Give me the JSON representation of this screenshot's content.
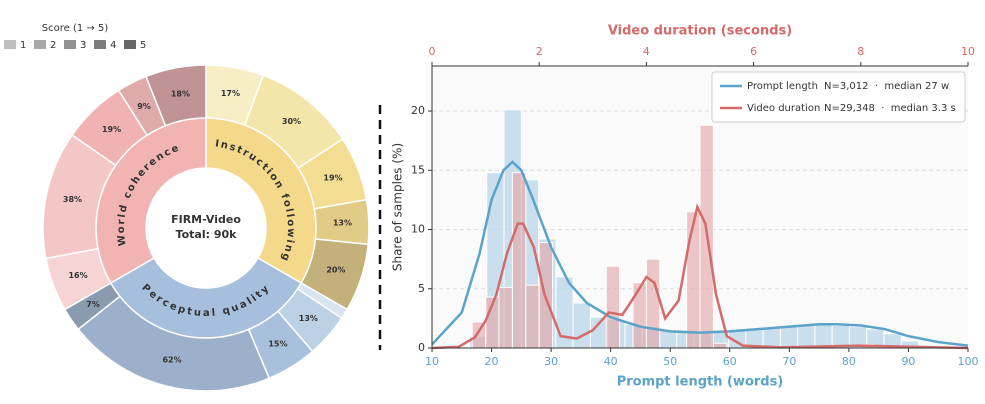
{
  "chart_data": [
    {
      "type": "sunburst",
      "center_title": "FIRM-Video",
      "center_subtitle": "Total: 90k",
      "legend_title": "Score (1 → 5)",
      "legend_labels": [
        "1",
        "2",
        "3",
        "4",
        "5"
      ],
      "legend_colors": [
        "#bdbdbd",
        "#a8a8a8",
        "#929292",
        "#7c7c7c",
        "#666666"
      ],
      "categories": [
        "Instruction following",
        "Perceptual quality",
        "World coherence"
      ],
      "values": [
        30,
        30,
        30
      ],
      "colors": [
        "#f5d98b",
        "#a6bfdc",
        "#f2b3b3"
      ],
      "segments": [
        {
          "values": [
            17,
            30,
            19,
            13,
            20
          ],
          "value_labels": [
            "17%",
            "30%",
            "19%",
            "13%",
            "20%"
          ],
          "colors": [
            "#f8eec6",
            "#f4e5a8",
            "#f2dd93",
            "#e2cb86",
            "#c4b07a"
          ]
        },
        {
          "values": [
            3,
            13,
            15,
            62,
            7
          ],
          "value_labels": [
            null,
            "13%",
            "15%",
            "62%",
            "7%"
          ],
          "colors": [
            "#d8e4f0",
            "#bcd0e6",
            "#a9c0dc",
            "#9cb0cc",
            "#8a9bb0"
          ]
        },
        {
          "values": [
            16,
            38,
            19,
            9,
            18
          ],
          "value_labels": [
            "16%",
            "38%",
            "19%",
            "9%",
            "18%"
          ],
          "colors": [
            "#f7d4d4",
            "#f5c6c6",
            "#f0b2b2",
            "#deaaaa",
            "#c09494"
          ]
        }
      ]
    },
    {
      "type": "histogram_kde",
      "xlabel": "Prompt length (words)",
      "x2label": "Video duration (seconds)",
      "ylabel": "Share of samples (%)",
      "xlim": [
        10,
        100
      ],
      "xticks": [
        10,
        20,
        30,
        40,
        50,
        60,
        70,
        80,
        90,
        100
      ],
      "x2lim": [
        0,
        10
      ],
      "x2ticks": [
        0,
        2,
        4,
        6,
        8,
        10
      ],
      "ylim": [
        0,
        23.8
      ],
      "yticks": [
        0,
        5,
        10,
        15,
        20
      ],
      "grid": true,
      "legend": "upper right",
      "series": [
        {
          "name": "Prompt length",
          "legend_detail": "N=3,012  ·  median 27 w",
          "color": "#5ba3c9",
          "bar_color": "#b9d6e8",
          "xaxis": "x",
          "bins": [
            16.3,
            19.2,
            22.1,
            25.0,
            27.9,
            30.8,
            33.7,
            36.6,
            39.5,
            42.4,
            45.3,
            48.2,
            51.1,
            54.0,
            56.9,
            59.8,
            62.7,
            65.6,
            68.5,
            71.4,
            74.3,
            77.2,
            80.1,
            83.0,
            85.9,
            88.8,
            91.7
          ],
          "counts": [
            1.0,
            14.8,
            20.1,
            14.2,
            9.2,
            6.0,
            3.8,
            2.6,
            2.4,
            2.0,
            1.8,
            1.5,
            1.3,
            1.3,
            1.4,
            1.5,
            1.6,
            1.7,
            1.8,
            1.9,
            2.0,
            1.9,
            1.8,
            1.6,
            1.2,
            0.6
          ],
          "kde_x": [
            10,
            15,
            18,
            20,
            22,
            23.5,
            25,
            27,
            30,
            33,
            36,
            40,
            45,
            50,
            55,
            60,
            65,
            70,
            75,
            78,
            82,
            86,
            90,
            95,
            100
          ],
          "kde_y": [
            0.3,
            3,
            8,
            12.5,
            15,
            15.7,
            15,
            12.5,
            8.5,
            5.5,
            3.8,
            2.6,
            1.8,
            1.4,
            1.3,
            1.4,
            1.6,
            1.8,
            2.0,
            2.0,
            1.9,
            1.6,
            1.0,
            0.5,
            0.2
          ]
        },
        {
          "name": "Video duration",
          "legend_detail": "N=29,348  ·  median 3.3 s",
          "color": "#d46a6a",
          "bar_color": "#e3a3a3",
          "xaxis": "x2",
          "bins": [
            0.75,
            1.0,
            1.25,
            1.5,
            1.75,
            2.0,
            2.25,
            2.5,
            2.75,
            3.0,
            3.25,
            3.5,
            3.75,
            4.0,
            4.25,
            4.5,
            4.75,
            5.0,
            5.25,
            5.5,
            5.75,
            6.0,
            6.25,
            6.5,
            6.75,
            7.0,
            7.25,
            7.5,
            7.75,
            8.0,
            8.25
          ],
          "counts": [
            2.2,
            4.3,
            5.1,
            14.8,
            5.3,
            8.9,
            0,
            0,
            0,
            0,
            6.9,
            0,
            5.5,
            7.5,
            0,
            0,
            11.5,
            18.8,
            0.4,
            0,
            0,
            0,
            0,
            0,
            0,
            0,
            0,
            0,
            0,
            0.3
          ],
          "kde_x": [
            0,
            0.5,
            0.8,
            1.0,
            1.2,
            1.4,
            1.6,
            1.7,
            1.9,
            2.1,
            2.4,
            2.7,
            3.0,
            3.3,
            3.55,
            3.8,
            4.0,
            4.15,
            4.35,
            4.6,
            4.8,
            4.95,
            5.1,
            5.3,
            5.5,
            5.8,
            6.5,
            8,
            10
          ],
          "kde_y": [
            0,
            0.1,
            0.9,
            2.3,
            4.5,
            8,
            10.5,
            10.5,
            8.5,
            4.5,
            1.0,
            0.8,
            1.5,
            3.0,
            2.8,
            4.5,
            6.0,
            5.5,
            2.5,
            4.0,
            9.0,
            11.9,
            10.5,
            4.5,
            1.0,
            0.2,
            0.05,
            0.2,
            0
          ]
        }
      ]
    }
  ]
}
